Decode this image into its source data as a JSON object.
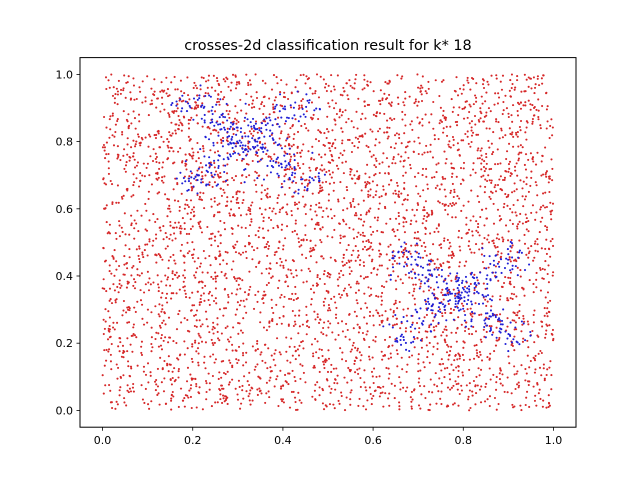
{
  "chart_data": {
    "type": "scatter",
    "title": "crosses-2d classification result for k* 18",
    "xlabel": "",
    "ylabel": "",
    "xlim": [
      -0.05,
      1.05
    ],
    "ylim": [
      -0.05,
      1.05
    ],
    "xticks": [
      0.0,
      0.2,
      0.4,
      0.6,
      0.8,
      1.0
    ],
    "yticks": [
      0.0,
      0.2,
      0.4,
      0.6,
      0.8,
      1.0
    ],
    "xtick_labels": [
      "0.0",
      "0.2",
      "0.4",
      "0.6",
      "0.8",
      "1.0"
    ],
    "ytick_labels": [
      "0.0",
      "0.2",
      "0.4",
      "0.6",
      "0.8",
      "1.0"
    ],
    "grid": false,
    "legend": "none",
    "series": [
      {
        "color": "#d62728",
        "marker_size": 1.4,
        "distribution": "uniform over the unit square [0,1]×[0,1], approximately 4000 points",
        "count": 4000,
        "x_range": [
          0.0,
          1.0
        ],
        "y_range": [
          0.0,
          1.0
        ]
      },
      {
        "color": "#1f1fd6",
        "marker_size": 1.4,
        "distribution": "two cross-shaped clusters (diagonal arms)",
        "clusters": [
          {
            "center": [
              0.32,
              0.8
            ],
            "count": 320,
            "spread": 0.05,
            "arm_length": 0.14
          },
          {
            "center": [
              0.79,
              0.34
            ],
            "count": 320,
            "spread": 0.05,
            "arm_length": 0.14
          }
        ]
      }
    ]
  }
}
